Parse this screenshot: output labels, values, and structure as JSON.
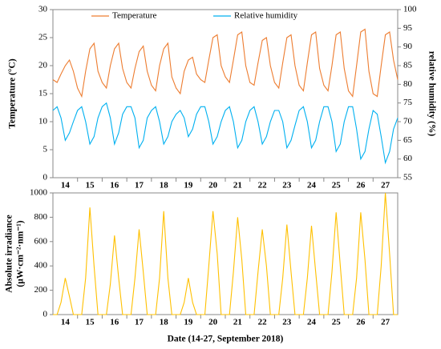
{
  "chart_data": [
    {
      "type": "line",
      "ylabel": "Temperature (°C)",
      "y2label": "relative humidity (%)",
      "xlim": [
        13.5,
        27.5
      ],
      "xticks": [
        14,
        15,
        16,
        17,
        18,
        19,
        20,
        21,
        22,
        23,
        24,
        25,
        26,
        27
      ],
      "ylim": [
        0,
        30
      ],
      "yticks": [
        0,
        5,
        10,
        15,
        20,
        25,
        30
      ],
      "y2lim": [
        55,
        100
      ],
      "y2ticks": [
        55,
        60,
        65,
        70,
        75,
        80,
        85,
        90,
        95,
        100
      ],
      "legend": "top",
      "x": [
        13.5,
        13.67,
        13.83,
        14,
        14.17,
        14.33,
        14.5,
        14.67,
        14.83,
        15,
        15.17,
        15.33,
        15.5,
        15.67,
        15.83,
        16,
        16.17,
        16.33,
        16.5,
        16.67,
        16.83,
        17,
        17.17,
        17.33,
        17.5,
        17.67,
        17.83,
        18,
        18.17,
        18.33,
        18.5,
        18.67,
        18.83,
        19,
        19.17,
        19.33,
        19.5,
        19.67,
        19.83,
        20,
        20.17,
        20.33,
        20.5,
        20.67,
        20.83,
        21,
        21.17,
        21.33,
        21.5,
        21.67,
        21.83,
        22,
        22.17,
        22.33,
        22.5,
        22.67,
        22.83,
        23,
        23.17,
        23.33,
        23.5,
        23.67,
        23.83,
        24,
        24.17,
        24.33,
        24.5,
        24.67,
        24.83,
        25,
        25.17,
        25.33,
        25.5,
        25.67,
        25.83,
        26,
        26.17,
        26.33,
        26.5,
        26.67,
        26.83,
        27,
        27.17,
        27.33,
        27.5
      ],
      "series": [
        {
          "name": "Temperature",
          "color": "#ed7d31",
          "values": [
            17.5,
            17,
            18.5,
            20,
            21,
            19,
            16,
            14.5,
            19,
            23,
            24,
            19,
            17,
            16,
            20,
            23,
            24,
            19.5,
            17,
            16,
            19.5,
            22.5,
            23.5,
            19,
            16.5,
            15.5,
            20,
            23,
            24,
            18,
            16,
            15,
            19,
            21,
            21.5,
            18.5,
            17.5,
            17,
            21,
            25,
            25.5,
            20,
            18,
            17,
            21,
            25.5,
            26,
            20,
            17,
            16.5,
            20.5,
            24.5,
            25,
            20,
            17,
            16,
            20.5,
            25,
            25.5,
            20,
            16.5,
            15.5,
            20.5,
            25.5,
            26,
            19.5,
            16.5,
            15.5,
            20,
            25.5,
            26,
            19.5,
            15.5,
            14.5,
            20,
            26,
            26.5,
            19,
            15,
            14.5,
            20,
            25.5,
            26,
            21,
            17.5
          ]
        },
        {
          "name": "Relative humidity",
          "color": "#00b0f0",
          "axis": "y2",
          "values": [
            73,
            74,
            71,
            65,
            67,
            70,
            73,
            74,
            70,
            64,
            66,
            71,
            74,
            75,
            71,
            64,
            67,
            72,
            74,
            74,
            71,
            63,
            65,
            71,
            73,
            74,
            70,
            64,
            66,
            70,
            72,
            73,
            71,
            66,
            68,
            72,
            74,
            74,
            70,
            64,
            66,
            70,
            73,
            74,
            70,
            63,
            65,
            70,
            73,
            74,
            70,
            64,
            66,
            70,
            73,
            73,
            70,
            63,
            65,
            69,
            73,
            74,
            70,
            63,
            65,
            70,
            74,
            74,
            70,
            62,
            64,
            70,
            74,
            74,
            68,
            60,
            62,
            68,
            73,
            72,
            66,
            59,
            62,
            68,
            71
          ]
        }
      ]
    },
    {
      "type": "line",
      "ylabel": [
        "Absolute irradiance",
        "(µW·cm⁻²·nm⁻¹)"
      ],
      "xlabel": "Date (14-27, September 2018)",
      "xlim": [
        13.5,
        27.5
      ],
      "xticks": [
        14,
        15,
        16,
        17,
        18,
        19,
        20,
        21,
        22,
        23,
        24,
        25,
        26,
        27
      ],
      "ylim": [
        0,
        1000
      ],
      "yticks": [
        0,
        200,
        400,
        600,
        800,
        1000
      ],
      "x": [
        13.5,
        13.67,
        13.83,
        14,
        14.17,
        14.33,
        14.5,
        14.67,
        14.83,
        15,
        15.17,
        15.33,
        15.5,
        15.67,
        15.83,
        16,
        16.17,
        16.33,
        16.5,
        16.67,
        16.83,
        17,
        17.17,
        17.33,
        17.5,
        17.67,
        17.83,
        18,
        18.17,
        18.33,
        18.5,
        18.67,
        18.83,
        19,
        19.17,
        19.33,
        19.5,
        19.67,
        19.83,
        20,
        20.17,
        20.33,
        20.5,
        20.67,
        20.83,
        21,
        21.17,
        21.33,
        21.5,
        21.67,
        21.83,
        22,
        22.17,
        22.33,
        22.5,
        22.67,
        22.83,
        23,
        23.17,
        23.33,
        23.5,
        23.67,
        23.83,
        24,
        24.17,
        24.33,
        24.5,
        24.67,
        24.83,
        25,
        25.17,
        25.33,
        25.5,
        25.67,
        25.83,
        26,
        26.17,
        26.33,
        26.5,
        26.67,
        26.83,
        27,
        27.17,
        27.33,
        27.5
      ],
      "series": [
        {
          "color": "#ffc000",
          "values": [
            0,
            0,
            100,
            300,
            150,
            0,
            0,
            0,
            300,
            880,
            400,
            0,
            0,
            0,
            250,
            650,
            300,
            0,
            0,
            0,
            300,
            700,
            350,
            0,
            0,
            0,
            300,
            850,
            300,
            0,
            0,
            0,
            100,
            300,
            100,
            0,
            0,
            0,
            400,
            850,
            500,
            0,
            0,
            0,
            350,
            800,
            450,
            0,
            0,
            0,
            350,
            700,
            400,
            0,
            0,
            0,
            300,
            740,
            350,
            0,
            0,
            0,
            300,
            730,
            350,
            0,
            0,
            0,
            350,
            840,
            400,
            0,
            0,
            0,
            300,
            840,
            450,
            0,
            0,
            0,
            400,
            1000,
            500,
            0,
            0
          ]
        }
      ]
    }
  ]
}
